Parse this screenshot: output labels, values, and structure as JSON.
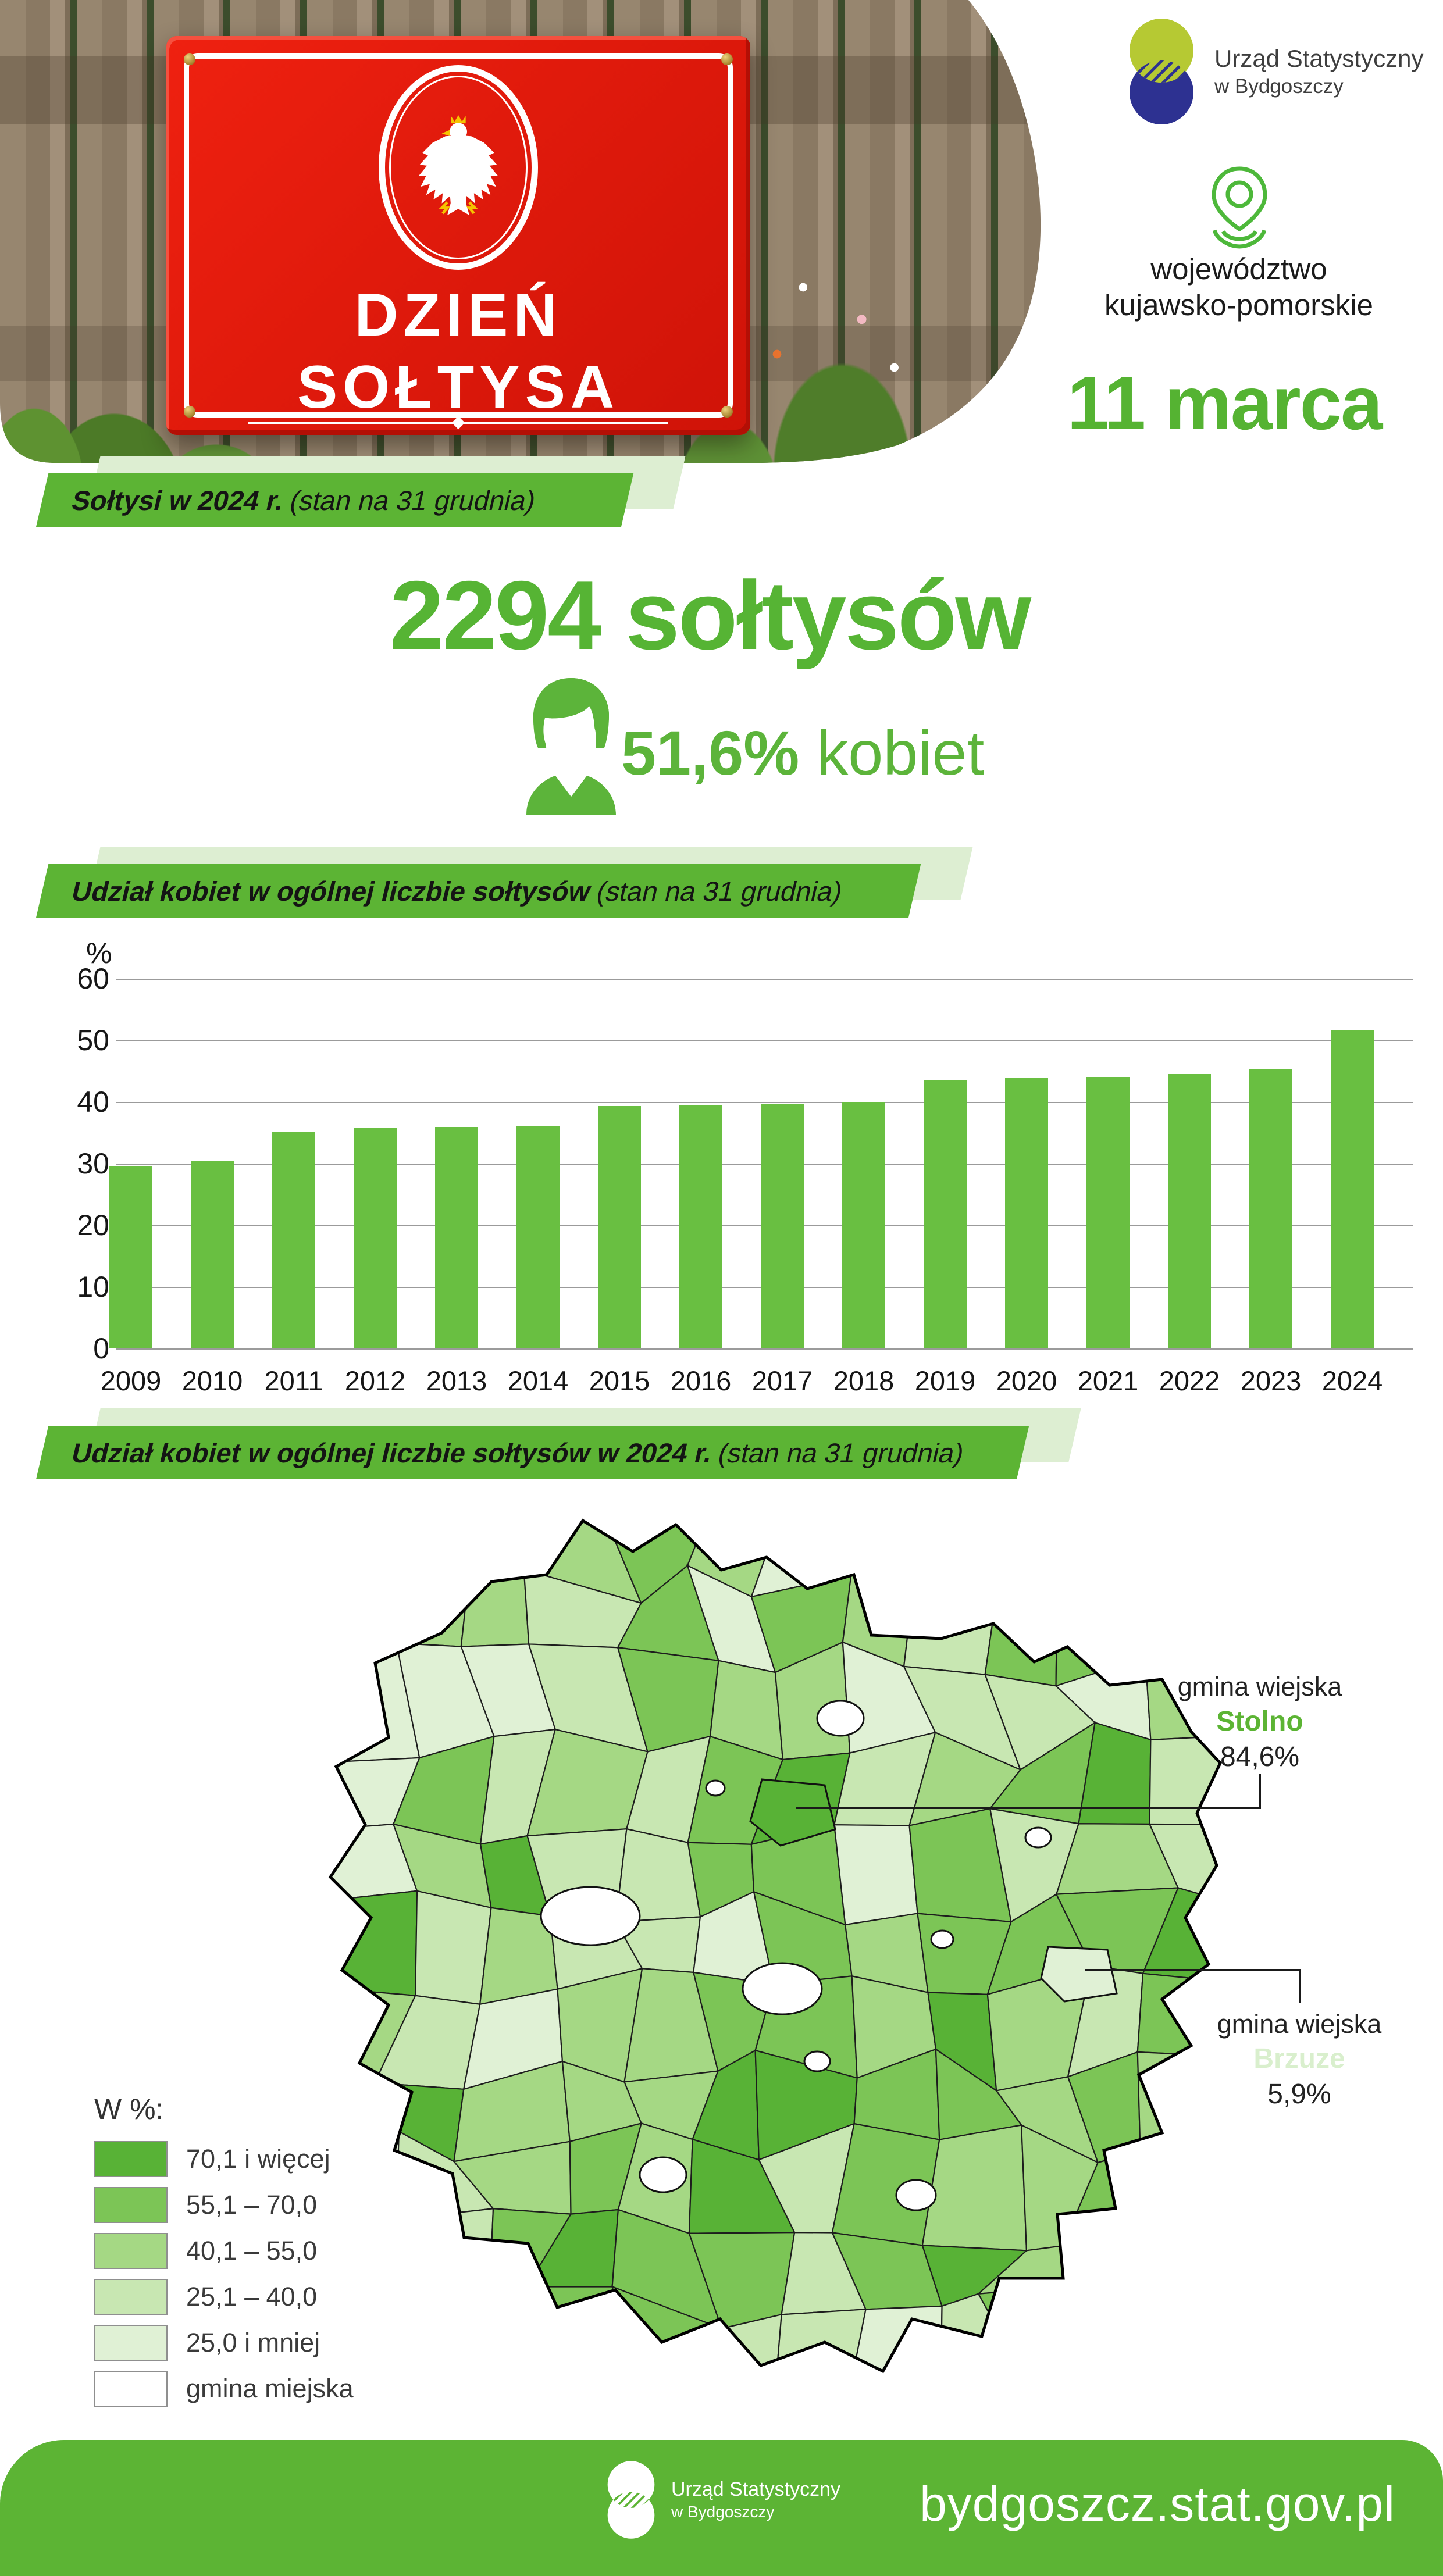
{
  "header": {
    "logo": {
      "line1": "Urząd Statystyczny",
      "line2": "w Bydgoszczy"
    },
    "region_line1": "województwo",
    "region_line2": "kujawsko-pomorskie",
    "date": "11 marca",
    "sign": {
      "line1": "DZIEŃ",
      "line2": "SOŁTYSA"
    }
  },
  "section1": {
    "badge_bold": "Sołtysi w 2024 r.",
    "badge_normal": "(stan na 31 grudnia)",
    "headline": "2294 sołtysów",
    "women_bold": "51,6%",
    "women_normal": " kobiet"
  },
  "chart_section": {
    "badge_bold": "Udział kobiet w ogólnej liczbie sołtysów",
    "badge_normal": "(stan na 31 grudnia)"
  },
  "map_section": {
    "badge_bold": "Udział kobiet w ogólnej liczbie sołtysów w 2024 r.",
    "badge_normal": "(stan na 31 grudnia)",
    "annotations": [
      {
        "type_label": "gmina wiejska",
        "name": "Stolno",
        "value": "84,6%",
        "name_color": "#5cb434"
      },
      {
        "type_label": "gmina wiejska",
        "name": "Brzuze",
        "value": "5,9%",
        "name_color": "#d9efcd"
      }
    ],
    "legend": {
      "title": "W %:",
      "items": [
        {
          "label": "70,1 i więcej",
          "color": "#58b236"
        },
        {
          "label": "55,1 – 70,0",
          "color": "#7cc556"
        },
        {
          "label": "40,1 – 55,0",
          "color": "#a5d884"
        },
        {
          "label": "25,1 – 40,0",
          "color": "#c8e7b2"
        },
        {
          "label": "25,0 i mniej",
          "color": "#e0f1d5"
        },
        {
          "label": "gmina miejska",
          "color": "#ffffff"
        }
      ]
    }
  },
  "chart_data": [
    {
      "type": "bar",
      "title": "Udział kobiet w ogólnej liczbie sołtysów (stan na 31 grudnia)",
      "categories": [
        "2009",
        "2010",
        "2011",
        "2012",
        "2013",
        "2014",
        "2015",
        "2016",
        "2017",
        "2018",
        "2019",
        "2020",
        "2021",
        "2022",
        "2023",
        "2024"
      ],
      "values": [
        29.6,
        30.4,
        35.2,
        35.8,
        35.9,
        36.1,
        39.3,
        39.4,
        39.6,
        40.0,
        43.6,
        44.0,
        44.1,
        44.5,
        45.3,
        51.6
      ],
      "xlabel": "",
      "ylabel": "%",
      "ylim": [
        0,
        60
      ],
      "yticks": [
        0,
        10,
        20,
        30,
        40,
        50,
        60
      ],
      "grid": true,
      "bar_color": "#69bf41"
    },
    {
      "type": "choropleth-map",
      "title": "Udział kobiet w ogólnej liczbie sołtysów w 2024 r. (stan na 31 grudnia)",
      "unit": "%",
      "classes": [
        "70,1 i więcej",
        "55,1 – 70,0",
        "40,1 – 55,0",
        "25,1 – 40,0",
        "25,0 i mniej",
        "gmina miejska"
      ],
      "highlighted": [
        {
          "name": "Stolno",
          "type": "gmina wiejska",
          "value": 84.6
        },
        {
          "name": "Brzuze",
          "type": "gmina wiejska",
          "value": 5.9
        }
      ]
    }
  ],
  "footer": {
    "logo_line1": "Urząd Statystyczny",
    "logo_line2": "w Bydgoszczy",
    "url": "bydgoszcz.stat.gov.pl"
  }
}
